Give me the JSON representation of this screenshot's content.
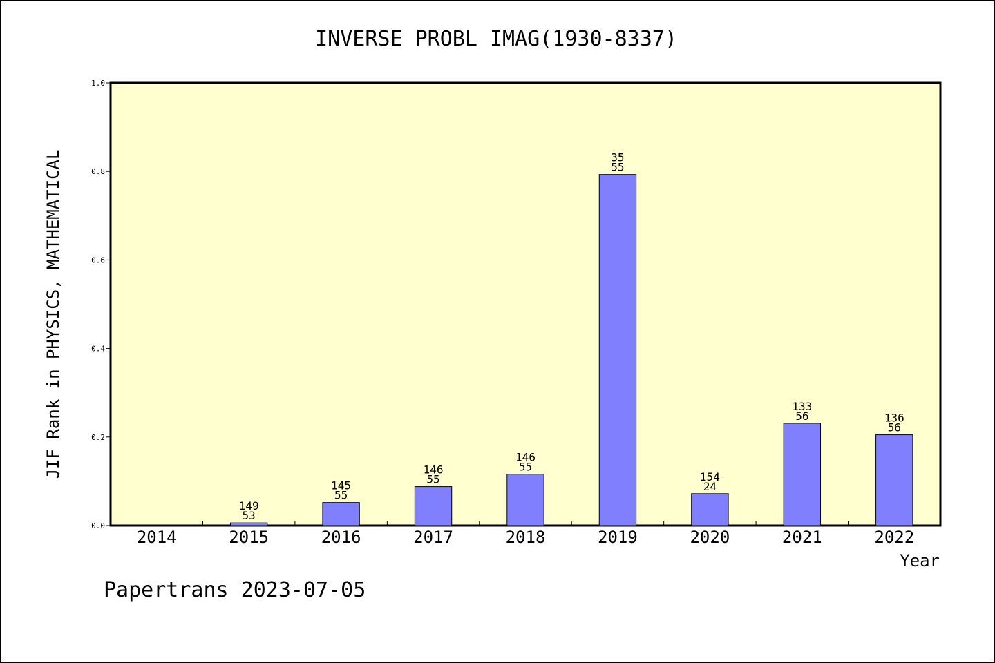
{
  "chart_data": {
    "type": "bar",
    "title": "INVERSE PROBL IMAG(1930-8337)",
    "xlabel": "Year",
    "ylabel": "JIF Rank in PHYSICS, MATHEMATICAL",
    "categories": [
      "2014",
      "2015",
      "2016",
      "2017",
      "2018",
      "2019",
      "2020",
      "2021",
      "2022"
    ],
    "values": [
      null,
      0.006,
      0.052,
      0.088,
      0.116,
      0.793,
      0.072,
      0.231,
      0.205
    ],
    "bar_labels": [
      null,
      [
        "149",
        "53"
      ],
      [
        "145",
        "55"
      ],
      [
        "146",
        "55"
      ],
      [
        "146",
        "55"
      ],
      [
        "35",
        "55"
      ],
      [
        "154",
        "24"
      ],
      [
        "133",
        "56"
      ],
      [
        "136",
        "56"
      ]
    ],
    "ylim": [
      0,
      1.0
    ],
    "yticks": [
      "0.0",
      "0.2",
      "0.4",
      "0.6",
      "0.8",
      "1.0"
    ],
    "plot_background": "#ffffd0",
    "bar_color": "#8080ff",
    "grid": false,
    "legend": "none"
  },
  "footer": "Papertrans 2023-07-05"
}
